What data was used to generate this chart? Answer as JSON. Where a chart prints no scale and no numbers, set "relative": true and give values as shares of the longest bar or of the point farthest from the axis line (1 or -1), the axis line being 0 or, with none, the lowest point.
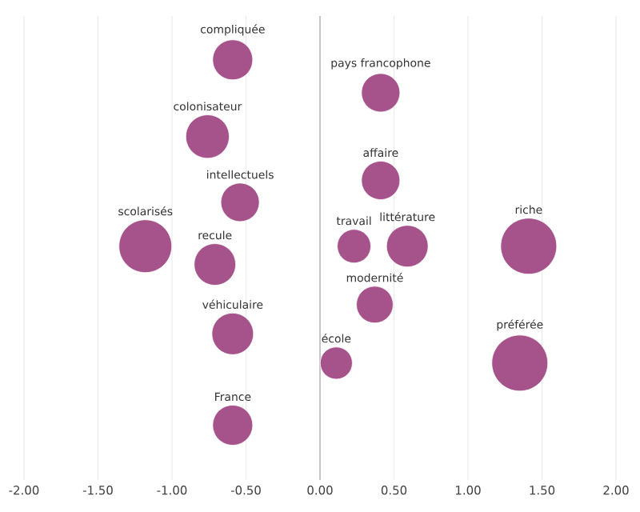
{
  "chart_data": {
    "type": "bubble",
    "relative": true,
    "color": "#a5538a",
    "marker": "circle",
    "grid": "x",
    "x": [
      -0.59,
      -0.76,
      -0.54,
      -1.18,
      -0.71,
      -0.59,
      -0.59,
      0.41,
      0.41,
      0.23,
      0.59,
      1.41,
      0.37,
      0.11,
      1.35
    ],
    "values": [
      1,
      0.79,
      0.61,
      0.49,
      0.44,
      0.25,
      0,
      0.91,
      0.67,
      0.49,
      0.49,
      0.49,
      0.33,
      0.17,
      0.17
    ],
    "sizes": [
      0.51,
      0.6,
      0.47,
      0.89,
      0.55,
      0.55,
      0.51,
      0.47,
      0.47,
      0.36,
      0.55,
      1,
      0.43,
      0.33,
      1
    ],
    "annotations": [
      {
        "text": "compliquée",
        "x": -0.59,
        "y": 1
      },
      {
        "text": "colonisateur",
        "x": -0.76,
        "y": 0.79
      },
      {
        "text": "intellectuels",
        "x": -0.54,
        "y": 0.61
      },
      {
        "text": "scolarisés",
        "x": -1.18,
        "y": 0.49
      },
      {
        "text": "recule",
        "x": -0.71,
        "y": 0.44
      },
      {
        "text": "véhiculaire",
        "x": -0.59,
        "y": 0.25
      },
      {
        "text": "France",
        "x": -0.59,
        "y": 0
      },
      {
        "text": "pays francophone",
        "x": 0.41,
        "y": 0.91
      },
      {
        "text": "affaire",
        "x": 0.41,
        "y": 0.67
      },
      {
        "text": "travail",
        "x": 0.23,
        "y": 0.49
      },
      {
        "text": "littérature",
        "x": 0.59,
        "y": 0.49
      },
      {
        "text": "riche",
        "x": 1.41,
        "y": 0.49
      },
      {
        "text": "modernité",
        "x": 0.37,
        "y": 0.33
      },
      {
        "text": "école",
        "x": 0.11,
        "y": 0.17
      },
      {
        "text": "préférée",
        "x": 1.35,
        "y": 0.17
      }
    ],
    "xlim": [
      -2,
      2
    ],
    "xticks": [
      {
        "value": -2,
        "label": "-2.00"
      },
      {
        "value": -1.5,
        "label": "-1.50"
      },
      {
        "value": -1,
        "label": "-1.00"
      },
      {
        "value": -0.5,
        "label": "-0.50"
      },
      {
        "value": 0,
        "label": "0.00"
      },
      {
        "value": 0.5,
        "label": "0.50"
      },
      {
        "value": 1,
        "label": "1.00"
      },
      {
        "value": 1.5,
        "label": "1.50"
      },
      {
        "value": 2,
        "label": "2.00"
      }
    ],
    "ref_lines": [
      {
        "axis": "x",
        "value": 0,
        "color": "#aaaaaa"
      }
    ]
  }
}
